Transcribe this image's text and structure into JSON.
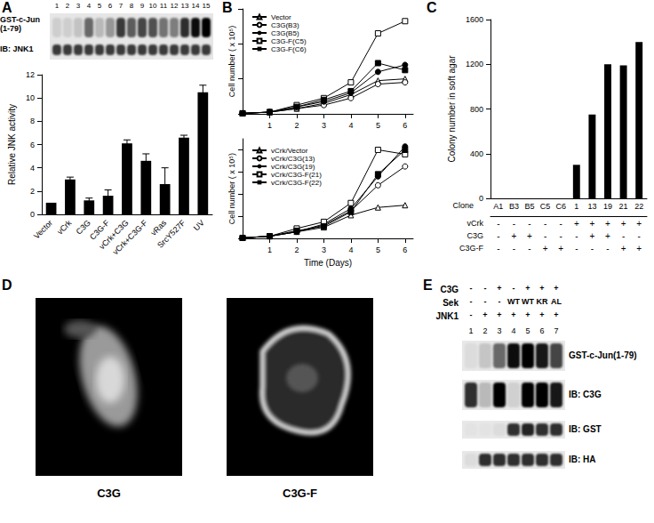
{
  "chart_data": [
    {
      "title": "A",
      "type": "bar",
      "categories": [
        "Vector",
        "vCrk",
        "C3G",
        "C3G-F",
        "vCrk+C3G",
        "vCrk+C3G-F",
        "vRas",
        "SrcY527F",
        "UV"
      ],
      "values": [
        1,
        3,
        1.2,
        1.6,
        6.1,
        4.6,
        2.6,
        6.6,
        10.5
      ],
      "errors": [
        0,
        0.2,
        0.2,
        0.5,
        0.3,
        0.6,
        1.4,
        0.2,
        0.6
      ],
      "color": "#000000",
      "ylabel": "Relative JNK activity",
      "ylim": [
        0,
        12
      ],
      "yticks": [
        0,
        2,
        4,
        6,
        8,
        10,
        12
      ],
      "grid": false
    },
    {
      "title": "B",
      "type": "line",
      "x": [
        0,
        1,
        2,
        3,
        4,
        5,
        6
      ],
      "series": [
        {
          "name": "Vector",
          "color": "#000000",
          "marker": "triangle-open",
          "values": [
            0.3,
            1,
            3,
            6,
            11,
            19,
            20
          ]
        },
        {
          "name": "C3G(B3)",
          "color": "#000000",
          "marker": "circle-open",
          "values": [
            0.3,
            1,
            3,
            5,
            9,
            17,
            18
          ]
        },
        {
          "name": "C3G(B5)",
          "color": "#000000",
          "marker": "circle",
          "values": [
            0.3,
            1,
            4,
            7,
            12,
            24,
            28
          ]
        },
        {
          "name": "C3G-F(C5)",
          "color": "#000000",
          "marker": "square-open",
          "values": [
            0.3,
            1,
            5,
            9,
            18,
            46,
            53
          ]
        },
        {
          "name": "C3G-F(C6)",
          "color": "#000000",
          "marker": "square",
          "values": [
            0.3,
            1,
            4,
            8,
            13,
            29,
            25
          ]
        }
      ],
      "ylabel": "Cell number ( x 10⁵)",
      "xlim": [
        0,
        6.3
      ],
      "xticks": [
        1,
        2,
        3,
        4,
        5,
        6
      ],
      "ylim": [
        0,
        60
      ],
      "yticks": [
        0,
        20,
        40,
        60
      ],
      "tick_labels": "x",
      "legend": "top-left",
      "grid": false
    },
    {
      "type": "line",
      "x": [
        0,
        1,
        2,
        3,
        4,
        5,
        6
      ],
      "series": [
        {
          "name": "vCrk/Vector",
          "color": "#000000",
          "marker": "triangle-open",
          "values": [
            0.5,
            2,
            6,
            10,
            21,
            28,
            30
          ]
        },
        {
          "name": "vCrk/C3G(13)",
          "color": "#000000",
          "marker": "circle-open",
          "values": [
            0.5,
            2,
            6,
            12,
            25,
            48,
            65
          ]
        },
        {
          "name": "vCrk/C3G(19)",
          "color": "#000000",
          "marker": "circle",
          "values": [
            0.5,
            2,
            6,
            13,
            27,
            56,
            83
          ]
        },
        {
          "name": "vCrk/C3G-F(21)",
          "color": "#000000",
          "marker": "square-open",
          "values": [
            0.5,
            2,
            9,
            15,
            32,
            80,
            76
          ]
        },
        {
          "name": "vCrk/C3G-F(22)",
          "color": "#000000",
          "marker": "square",
          "values": [
            0.5,
            2,
            7,
            11,
            24,
            58,
            80
          ]
        }
      ],
      "xlabel": "Time (Days)",
      "ylabel": "Cell number ( x 10⁵)",
      "xlim": [
        0,
        6.3
      ],
      "xticks": [
        1,
        2,
        3,
        4,
        5,
        6
      ],
      "ylim": [
        0,
        90
      ],
      "yticks": [
        0,
        20,
        40,
        60,
        80
      ],
      "tick_labels": "x",
      "legend": "top-left",
      "grid": false
    },
    {
      "title": "C",
      "type": "bar",
      "xlabel": "Clone",
      "categories": [
        "A1",
        "B3",
        "B5",
        "C5",
        "C6",
        "1",
        "13",
        "19",
        "21",
        "22"
      ],
      "values": [
        0,
        0,
        0,
        0,
        0,
        300,
        750,
        1200,
        1190,
        1400
      ],
      "color": "#000000",
      "ylabel": "Colony number in soft agar",
      "ylim": [
        0,
        1600
      ],
      "yticks": [
        0,
        400,
        800,
        1200,
        1600
      ],
      "grid": false,
      "conditions": [
        {
          "name": "vCrk",
          "values": [
            "-",
            "-",
            "-",
            "-",
            "-",
            "+",
            "+",
            "+",
            "+",
            "+"
          ]
        },
        {
          "name": "C3G",
          "values": [
            "-",
            "+",
            "+",
            "-",
            "-",
            "-",
            "+",
            "+",
            "-",
            "-"
          ]
        },
        {
          "name": "C3G-F",
          "values": [
            "-",
            "-",
            "-",
            "+",
            "+",
            "-",
            "-",
            "-",
            "+",
            "+"
          ]
        }
      ]
    }
  ],
  "blot_A": {
    "lanes": [
      1,
      2,
      3,
      4,
      5,
      6,
      7,
      8,
      9,
      10,
      11,
      12,
      13,
      14,
      15
    ],
    "rows": [
      "GST-c-Jun\n(1-79)",
      "IB: JNK1"
    ]
  },
  "panel_D": {
    "title": "D",
    "images": [
      "C3G",
      "C3G-F"
    ]
  },
  "panel_E": {
    "title": "E",
    "lanes": [
      1,
      2,
      3,
      4,
      5,
      6,
      7
    ],
    "conditions": [
      {
        "name": "C3G",
        "values": [
          "-",
          "-",
          "+",
          "-",
          "+",
          "+",
          "+"
        ]
      },
      {
        "name": "Sek",
        "values": [
          "-",
          "-",
          "-",
          "WT",
          "WT",
          "KR",
          "AL"
        ]
      },
      {
        "name": "JNK1",
        "values": [
          "-",
          "+",
          "+",
          "+",
          "+",
          "+",
          "+"
        ]
      }
    ],
    "rows": [
      "GST-c-Jun(1-79)",
      "IB: C3G",
      "IB: GST",
      "IB: HA"
    ]
  }
}
